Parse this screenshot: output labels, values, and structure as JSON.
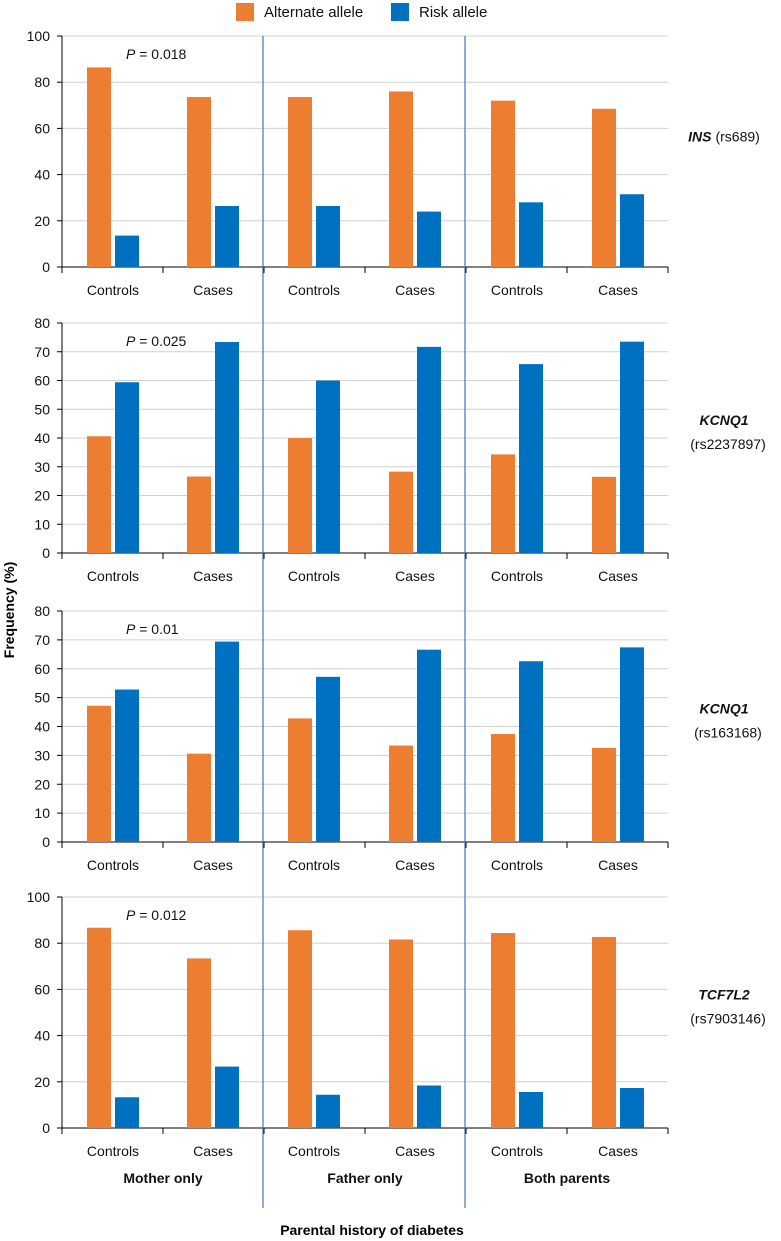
{
  "legend": [
    {
      "label": "Alternate allele",
      "color": "#ED7D31"
    },
    {
      "label": "Risk allele",
      "color": "#0070C0"
    }
  ],
  "y_axis_title": "Frequency (%)",
  "x_axis_title": "Parental history of diabetes",
  "groups": [
    "Mother only",
    "Father only",
    "Both parents"
  ],
  "subgroups": [
    "Controls",
    "Cases"
  ],
  "chart_data": [
    {
      "type": "bar",
      "gene": "INS",
      "snp": "(rs689)",
      "p_label": "P",
      "p_value": " = 0.018",
      "ylim": [
        0,
        100
      ],
      "yticks": [
        0,
        20,
        40,
        60,
        80,
        100
      ],
      "categories": [
        "Controls",
        "Cases",
        "Controls",
        "Cases",
        "Controls",
        "Cases"
      ],
      "series": [
        {
          "name": "Alternate allele",
          "values": [
            86.4,
            73.6,
            73.6,
            76.0,
            72.0,
            68.5
          ]
        },
        {
          "name": "Risk allele",
          "values": [
            13.6,
            26.4,
            26.4,
            24.0,
            28.0,
            31.5
          ]
        }
      ]
    },
    {
      "type": "bar",
      "gene": "KCNQ1",
      "snp": "(rs2237897)",
      "p_label": "P",
      "p_value": " = 0.025",
      "ylim": [
        0,
        80
      ],
      "yticks": [
        0,
        10,
        20,
        30,
        40,
        50,
        60,
        70,
        80
      ],
      "categories": [
        "Controls",
        "Cases",
        "Controls",
        "Cases",
        "Controls",
        "Cases"
      ],
      "series": [
        {
          "name": "Alternate allele",
          "values": [
            40.6,
            26.6,
            40.0,
            28.3,
            34.3,
            26.5
          ]
        },
        {
          "name": "Risk allele",
          "values": [
            59.4,
            73.4,
            60.0,
            71.7,
            65.7,
            73.5
          ]
        }
      ]
    },
    {
      "type": "bar",
      "gene": "KCNQ1",
      "snp": "(rs163168)",
      "p_label": "P",
      "p_value": " = 0.01",
      "ylim": [
        0,
        80
      ],
      "yticks": [
        0,
        10,
        20,
        30,
        40,
        50,
        60,
        70,
        80
      ],
      "categories": [
        "Controls",
        "Cases",
        "Controls",
        "Cases",
        "Controls",
        "Cases"
      ],
      "series": [
        {
          "name": "Alternate allele",
          "values": [
            47.2,
            30.6,
            42.8,
            33.4,
            37.4,
            32.6
          ]
        },
        {
          "name": "Risk allele",
          "values": [
            52.8,
            69.4,
            57.2,
            66.6,
            62.6,
            67.4
          ]
        }
      ]
    },
    {
      "type": "bar",
      "gene": "TCF7L2",
      "snp": "(rs7903146)",
      "p_label": "P",
      "p_value": " = 0.012",
      "ylim": [
        0,
        100
      ],
      "yticks": [
        0,
        20,
        40,
        60,
        80,
        100
      ],
      "categories": [
        "Controls",
        "Cases",
        "Controls",
        "Cases",
        "Controls",
        "Cases"
      ],
      "series": [
        {
          "name": "Alternate allele",
          "values": [
            86.7,
            73.4,
            85.6,
            81.6,
            84.4,
            82.7
          ]
        },
        {
          "name": "Risk allele",
          "values": [
            13.3,
            26.6,
            14.4,
            18.4,
            15.6,
            17.3
          ]
        }
      ]
    }
  ]
}
